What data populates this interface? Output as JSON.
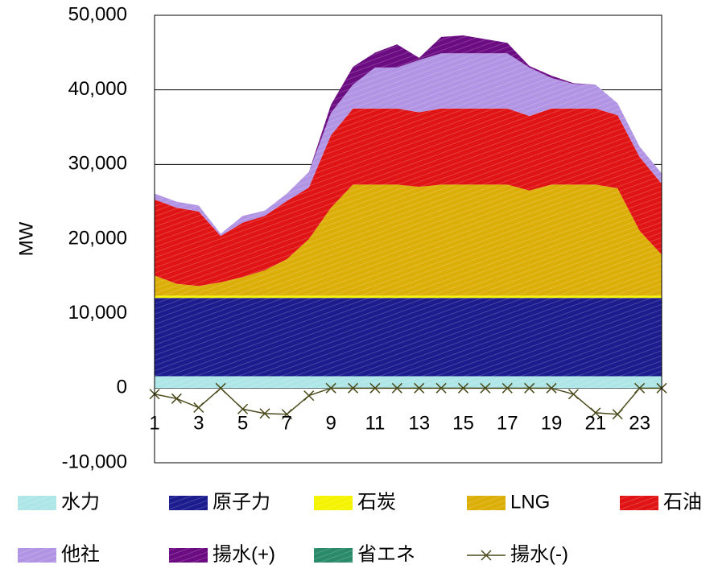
{
  "chart_data": {
    "type": "area",
    "y_label": "MW",
    "categories": [
      "1",
      null,
      "3",
      null,
      "5",
      null,
      "7",
      null,
      "9",
      null,
      "11",
      null,
      "13",
      null,
      "15",
      null,
      "17",
      null,
      "19",
      null,
      "21",
      null,
      "23",
      null
    ],
    "ylim": [
      -10000,
      50000
    ],
    "yticks": [
      {
        "value": -10000,
        "label": "-10,000"
      },
      0,
      {
        "value": 10000,
        "label": "10,000"
      },
      {
        "value": 20000,
        "label": "20,000"
      },
      {
        "value": 30000,
        "label": "30,000"
      },
      {
        "value": 40000,
        "label": "40,000"
      },
      {
        "value": 50000,
        "label": "50,000"
      }
    ],
    "grid": true,
    "legend": "bottom",
    "series": [
      {
        "name": "水力",
        "color": "#aee6e8",
        "values": [
          1600,
          1600,
          1600,
          1600,
          1600,
          1600,
          1600,
          1600,
          1600,
          1600,
          1600,
          1600,
          1600,
          1600,
          1600,
          1600,
          1600,
          1600,
          1600,
          1600,
          1600,
          1600,
          1600,
          1600
        ]
      },
      {
        "name": "原子力",
        "color": "#1c1c8e",
        "values": [
          10500,
          10500,
          10500,
          10500,
          10500,
          10500,
          10500,
          10500,
          10500,
          10500,
          10500,
          10500,
          10500,
          10500,
          10500,
          10500,
          10500,
          10500,
          10500,
          10500,
          10500,
          10500,
          10500,
          10500
        ]
      },
      {
        "name": "石炭",
        "color": "#f4f400",
        "values": [
          300,
          300,
          300,
          300,
          300,
          300,
          300,
          300,
          300,
          300,
          300,
          300,
          300,
          300,
          300,
          300,
          300,
          300,
          300,
          300,
          300,
          300,
          300,
          300
        ]
      },
      {
        "name": "LNG",
        "color": "#dcae08",
        "values": [
          2700,
          1600,
          1300,
          1800,
          2500,
          3400,
          4900,
          7600,
          11800,
          14900,
          14900,
          14900,
          14600,
          14900,
          14900,
          14900,
          14900,
          14100,
          14900,
          14900,
          14900,
          14400,
          8700,
          5500
        ]
      },
      {
        "name": "石油",
        "color": "#e01414",
        "values": [
          10200,
          10200,
          10000,
          6200,
          7300,
          7300,
          7800,
          6900,
          9700,
          10200,
          10200,
          10200,
          10000,
          10200,
          10200,
          10200,
          10200,
          10000,
          10200,
          10200,
          10200,
          9800,
          9900,
          9500
        ]
      },
      {
        "name": "他社",
        "color": "#b294e4",
        "values": [
          800,
          800,
          800,
          300,
          900,
          700,
          1000,
          2100,
          3000,
          3200,
          5500,
          5500,
          7000,
          7400,
          7400,
          7400,
          7400,
          6500,
          4100,
          3300,
          3200,
          1600,
          1400,
          1400
        ]
      },
      {
        "name": "揚水(+)",
        "color": "#6c0c82",
        "values": [
          0,
          0,
          0,
          0,
          0,
          0,
          0,
          0,
          1100,
          2400,
          2000,
          3100,
          300,
          2200,
          2400,
          1900,
          1400,
          200,
          300,
          100,
          0,
          0,
          0,
          0
        ]
      },
      {
        "name": "省エネ",
        "color": "#2a8a6a",
        "values": [
          0,
          0,
          0,
          0,
          0,
          0,
          0,
          0,
          0,
          0,
          0,
          0,
          0,
          0,
          0,
          0,
          0,
          0,
          0,
          0,
          0,
          0,
          0,
          0
        ]
      },
      {
        "name": "揚水(-)",
        "type": "line",
        "color": "#4a4a1c",
        "values": [
          -800,
          -1400,
          -2600,
          0,
          -2800,
          -3400,
          -3500,
          -1000,
          0,
          0,
          0,
          0,
          0,
          0,
          0,
          0,
          0,
          0,
          0,
          -800,
          -3300,
          -3500,
          0,
          0
        ]
      }
    ]
  }
}
